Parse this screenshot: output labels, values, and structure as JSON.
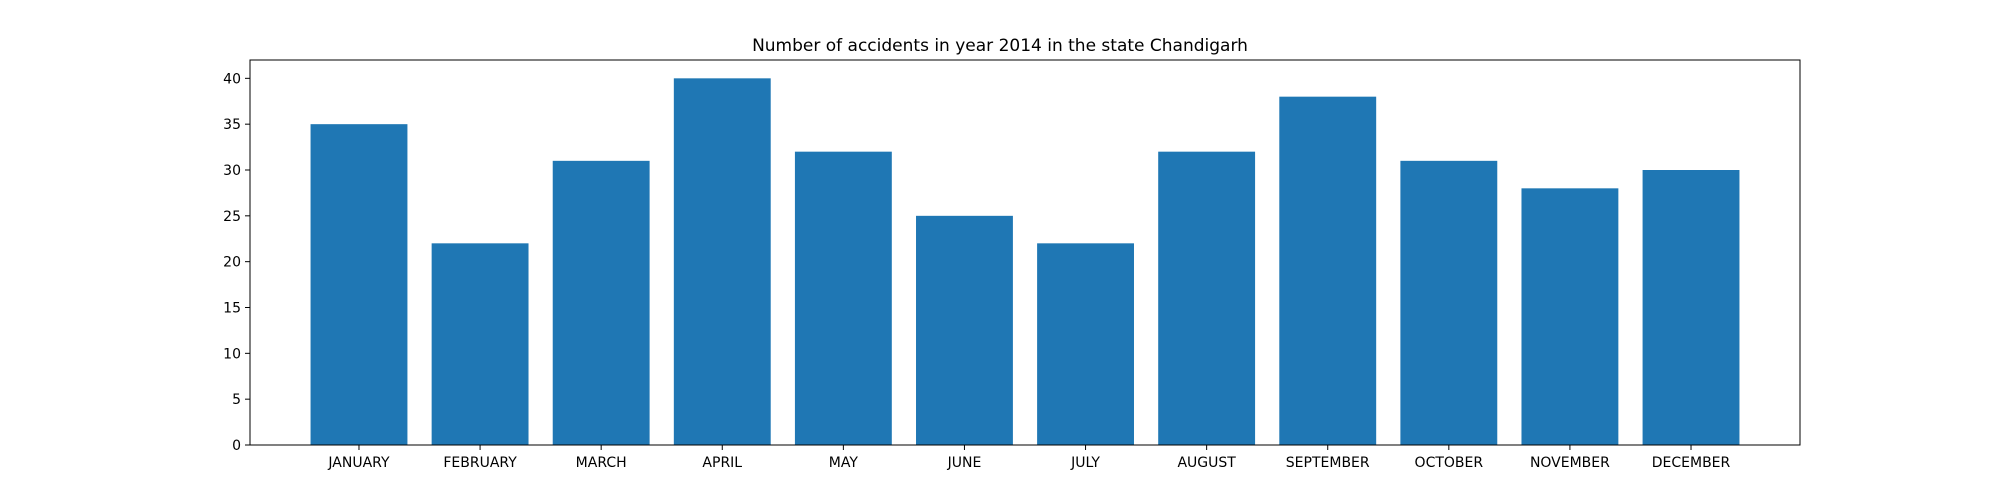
{
  "chart_data": {
    "type": "bar",
    "title": "Number of accidents in year 2014 in the state Chandigarh",
    "xlabel": "",
    "ylabel": "",
    "categories": [
      "JANUARY",
      "FEBRUARY",
      "MARCH",
      "APRIL",
      "MAY",
      "JUNE",
      "JULY",
      "AUGUST",
      "SEPTEMBER",
      "OCTOBER",
      "NOVEMBER",
      "DECEMBER"
    ],
    "values": [
      35,
      22,
      31,
      40,
      32,
      25,
      22,
      32,
      38,
      31,
      28,
      30
    ],
    "ylim": [
      0,
      42
    ],
    "yticks": [
      0,
      5,
      10,
      15,
      20,
      25,
      30,
      35,
      40
    ],
    "bar_color": "#1f77b4",
    "grid": false,
    "legend": "none"
  }
}
